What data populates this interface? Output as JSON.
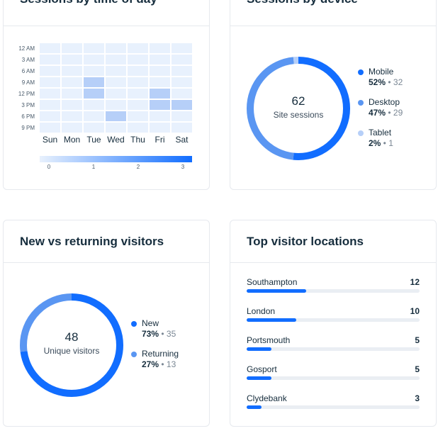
{
  "heatmap_card": {
    "title": "Sessions by time of day"
  },
  "device_card": {
    "title": "Sessions by device",
    "center_value": "62",
    "center_label": "Site sessions",
    "legend": [
      {
        "name": "Mobile",
        "percent": "52%",
        "count": "32",
        "color": "#116dff"
      },
      {
        "name": "Desktop",
        "percent": "47%",
        "count": "29",
        "color": "#5a96f2"
      },
      {
        "name": "Tablet",
        "percent": "2%",
        "count": "1",
        "color": "#b6cff8"
      }
    ]
  },
  "visitors_card": {
    "title": "New vs returning visitors",
    "center_value": "48",
    "center_label": "Unique visitors",
    "legend": [
      {
        "name": "New",
        "percent": "73%",
        "count": "35",
        "color": "#116dff"
      },
      {
        "name": "Returning",
        "percent": "27%",
        "count": "13",
        "color": "#5a96f2"
      }
    ]
  },
  "locations_card": {
    "title": "Top visitor locations"
  },
  "chart_data": [
    {
      "type": "heatmap",
      "title": "Sessions by time of day",
      "x": [
        "Sun",
        "Mon",
        "Tue",
        "Wed",
        "Thu",
        "Fri",
        "Sat"
      ],
      "y": [
        "12 AM",
        "3 AM",
        "6 AM",
        "9 AM",
        "12 PM",
        "3 PM",
        "6 PM",
        "9 PM"
      ],
      "values": [
        [
          0,
          0,
          0,
          0,
          0,
          0,
          0
        ],
        [
          0,
          0,
          0,
          0,
          0,
          0,
          0
        ],
        [
          0,
          0,
          0,
          0,
          0,
          0,
          0
        ],
        [
          0,
          0,
          1,
          0,
          0,
          0,
          0
        ],
        [
          0,
          0,
          1,
          0,
          0,
          1,
          0
        ],
        [
          0,
          0,
          0,
          0,
          0,
          1,
          1
        ],
        [
          0,
          0,
          0,
          1,
          0,
          0,
          0
        ],
        [
          0,
          0,
          0,
          0,
          0,
          0,
          0
        ]
      ],
      "scale": {
        "min": 0,
        "max": 3,
        "ticks": [
          "0",
          "1",
          "2",
          "3"
        ]
      },
      "colors": {
        "empty": "#e8f1fd",
        "low": "#b6cff8",
        "high": "#116dff"
      }
    },
    {
      "type": "pie",
      "title": "Sessions by device",
      "categories": [
        "Mobile",
        "Desktop",
        "Tablet"
      ],
      "values": [
        32,
        29,
        1
      ],
      "colors": [
        "#116dff",
        "#5a96f2",
        "#b6cff8"
      ]
    },
    {
      "type": "pie",
      "title": "New vs returning visitors",
      "categories": [
        "New",
        "Returning"
      ],
      "values": [
        35,
        13
      ],
      "colors": [
        "#116dff",
        "#5a96f2"
      ]
    },
    {
      "type": "bar",
      "title": "Top visitor locations",
      "categories": [
        "Southampton",
        "London",
        "Portsmouth",
        "Gosport",
        "Clydebank"
      ],
      "values": [
        12,
        10,
        5,
        5,
        3
      ],
      "xlim": [
        0,
        35
      ]
    }
  ]
}
